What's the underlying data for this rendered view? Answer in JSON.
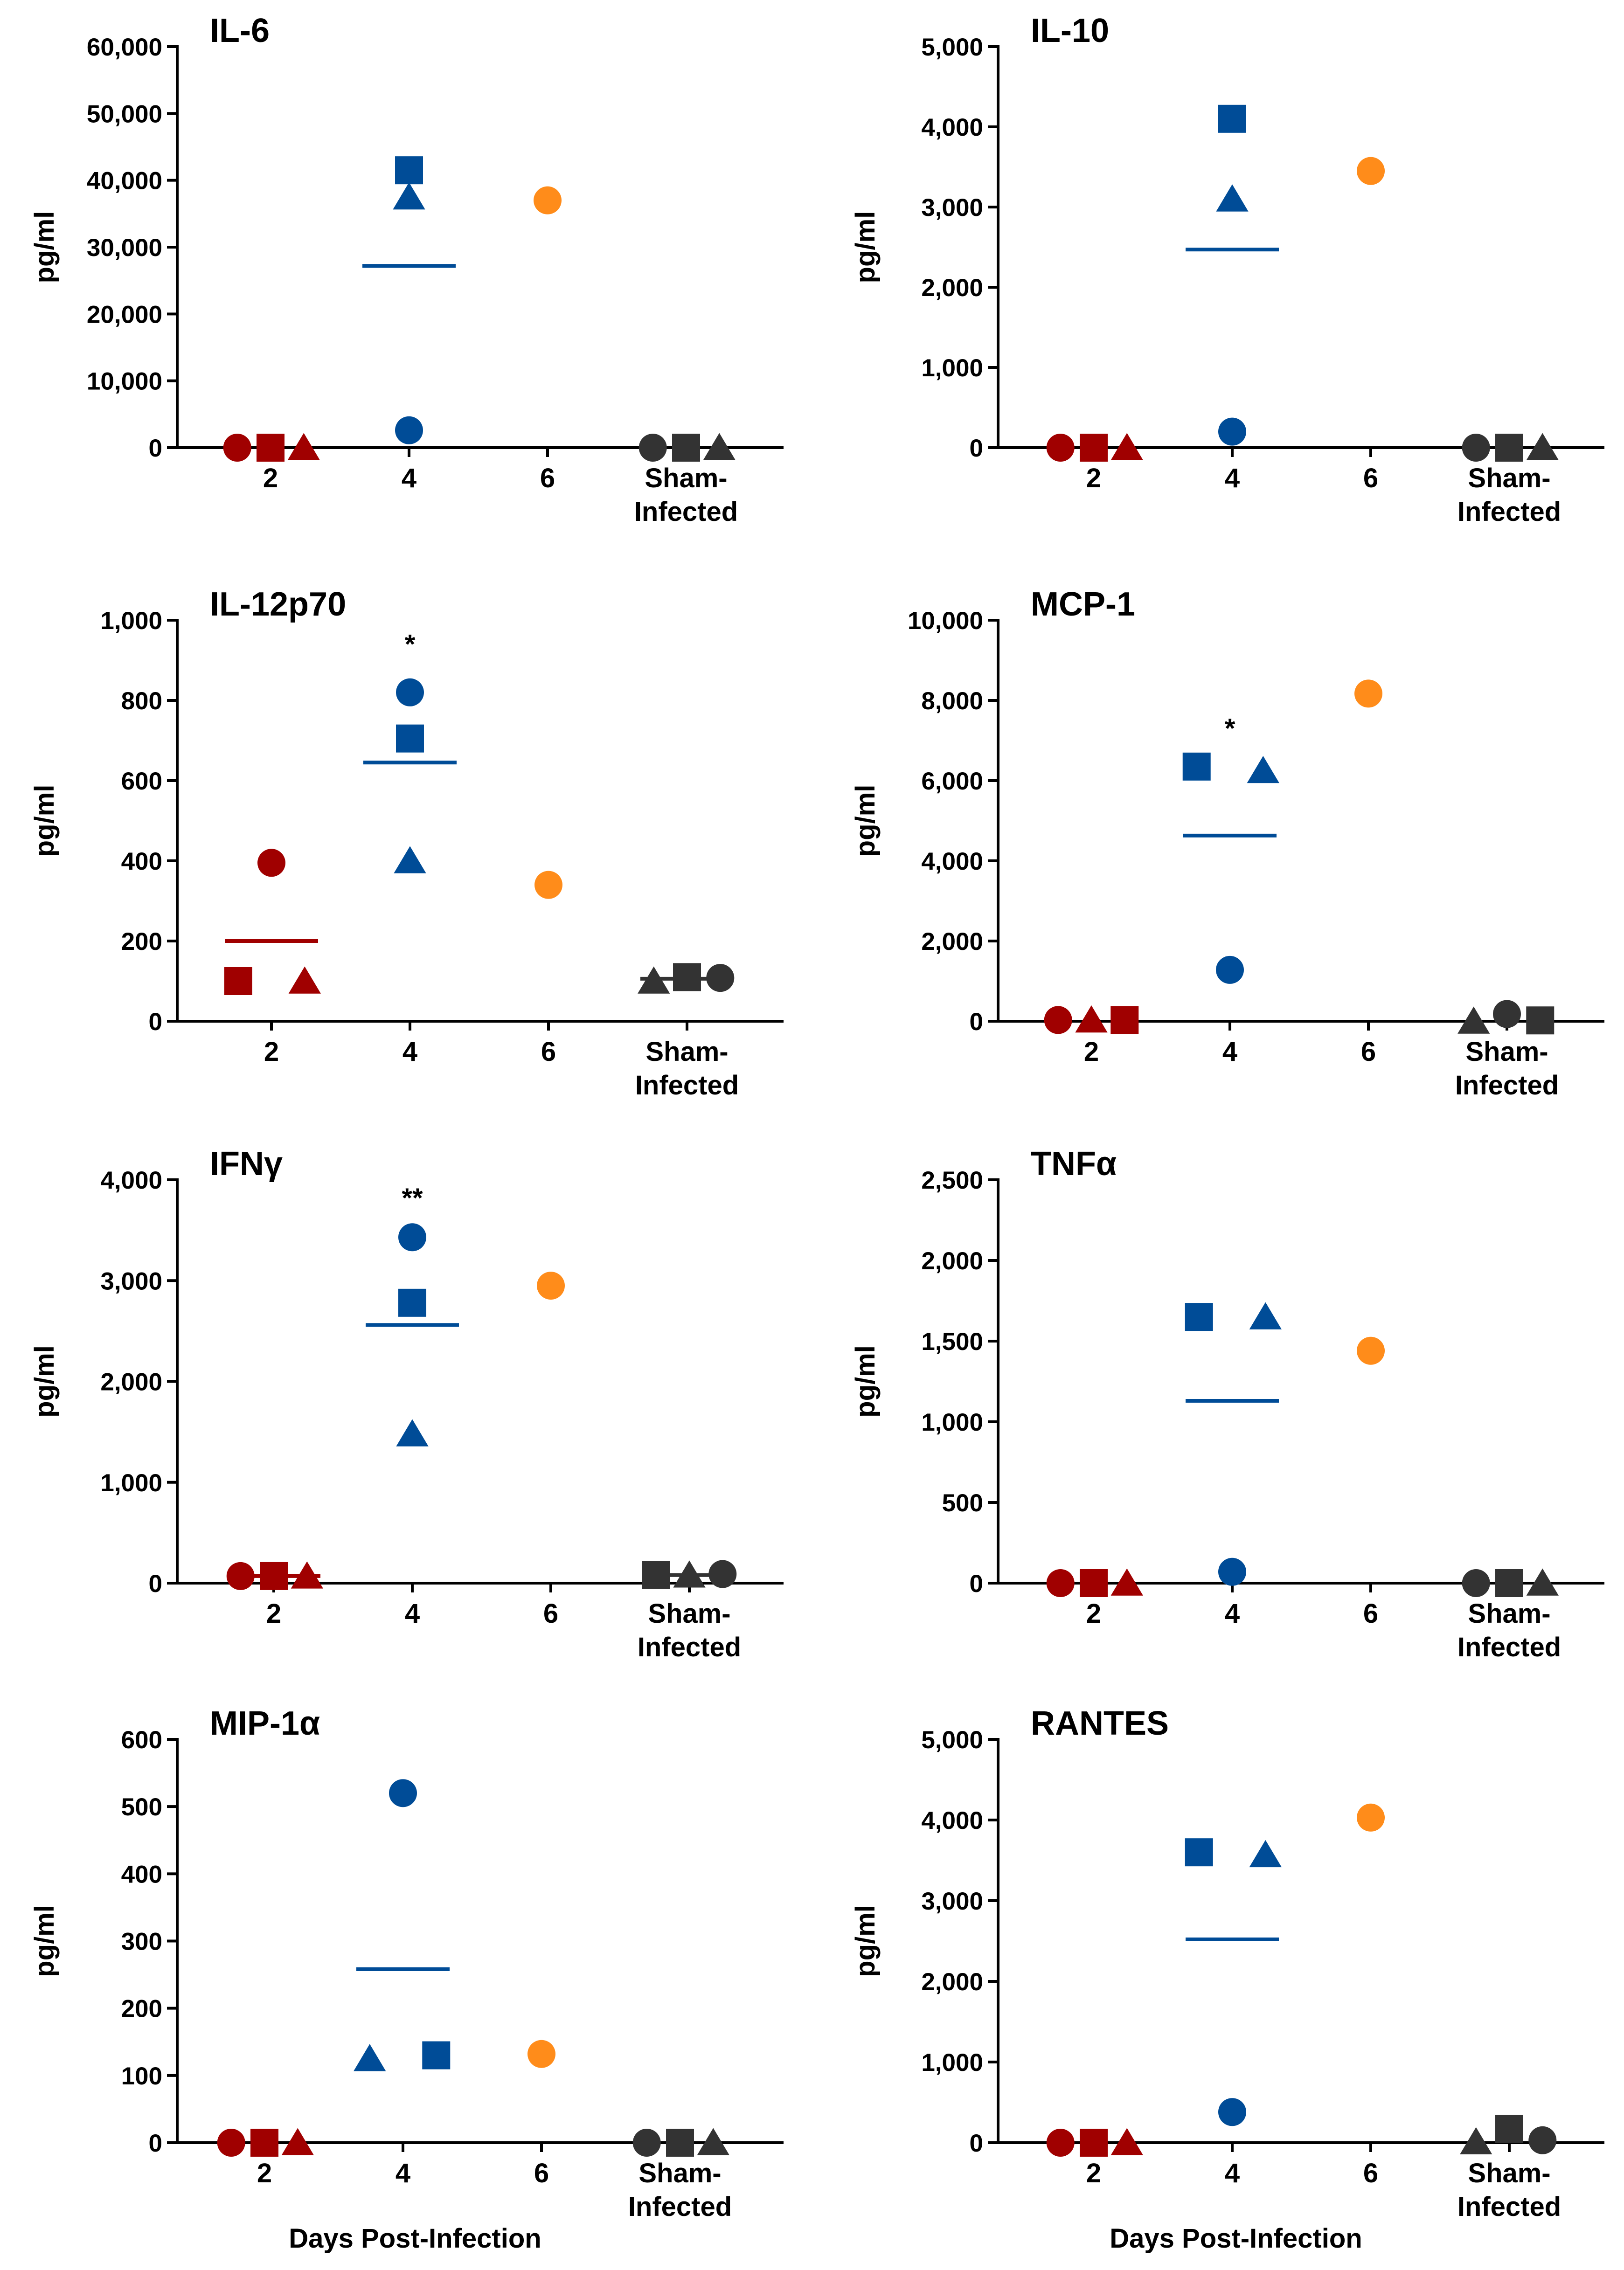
{
  "chart_data": [
    {
      "type": "scatter",
      "title": "IL-6",
      "ylabel": "pg/ml",
      "xlabel": "",
      "ylim": [
        0,
        60000
      ],
      "yticks": [
        0,
        10000,
        20000,
        30000,
        40000,
        50000,
        60000
      ],
      "ytick_labels": [
        "0",
        "10,000",
        "20,000",
        "30,000",
        "40,000",
        "50,000",
        "60,000"
      ],
      "categories": [
        "2",
        "4",
        "6",
        "Sham-\nInfected"
      ],
      "points": [
        {
          "cat": 0,
          "offset": -0.24,
          "shape": "circle",
          "color": "#a00000",
          "value": 0
        },
        {
          "cat": 0,
          "offset": 0,
          "shape": "square",
          "color": "#a00000",
          "value": 0
        },
        {
          "cat": 0,
          "offset": 0.24,
          "shape": "triangle",
          "color": "#a00000",
          "value": 0
        },
        {
          "cat": 1,
          "offset": 0,
          "shape": "square",
          "color": "#004c97",
          "value": 41500
        },
        {
          "cat": 1,
          "offset": 0,
          "shape": "triangle",
          "color": "#004c97",
          "value": 37500
        },
        {
          "cat": 1,
          "offset": 0,
          "shape": "circle",
          "color": "#004c97",
          "value": 2600
        },
        {
          "cat": 2,
          "offset": 0,
          "shape": "circle",
          "color": "#ff8c1a",
          "value": 37000
        },
        {
          "cat": 3,
          "offset": -0.24,
          "shape": "circle",
          "color": "#333333",
          "value": 0
        },
        {
          "cat": 3,
          "offset": 0,
          "shape": "square",
          "color": "#333333",
          "value": 0
        },
        {
          "cat": 3,
          "offset": 0.24,
          "shape": "triangle",
          "color": "#333333",
          "value": 0
        }
      ],
      "means": [
        {
          "cat": 1,
          "value": 27200,
          "color": "#004c97"
        }
      ],
      "annotations": []
    },
    {
      "type": "scatter",
      "title": "IL-10",
      "ylabel": "pg/ml",
      "xlabel": "",
      "ylim": [
        0,
        5000
      ],
      "yticks": [
        0,
        1000,
        2000,
        3000,
        4000,
        5000
      ],
      "ytick_labels": [
        "0",
        "1,000",
        "2,000",
        "3,000",
        "4,000",
        "5,000"
      ],
      "categories": [
        "2",
        "4",
        "6",
        "Sham-\nInfected"
      ],
      "points": [
        {
          "cat": 0,
          "offset": -0.24,
          "shape": "circle",
          "color": "#a00000",
          "value": 0
        },
        {
          "cat": 0,
          "offset": 0,
          "shape": "square",
          "color": "#a00000",
          "value": 0
        },
        {
          "cat": 0,
          "offset": 0.24,
          "shape": "triangle",
          "color": "#a00000",
          "value": 0
        },
        {
          "cat": 1,
          "offset": 0,
          "shape": "square",
          "color": "#004c97",
          "value": 4100
        },
        {
          "cat": 1,
          "offset": 0,
          "shape": "triangle",
          "color": "#004c97",
          "value": 3100
        },
        {
          "cat": 1,
          "offset": 0,
          "shape": "circle",
          "color": "#004c97",
          "value": 200
        },
        {
          "cat": 2,
          "offset": 0,
          "shape": "circle",
          "color": "#ff8c1a",
          "value": 3450
        },
        {
          "cat": 3,
          "offset": -0.24,
          "shape": "circle",
          "color": "#333333",
          "value": 0
        },
        {
          "cat": 3,
          "offset": 0,
          "shape": "square",
          "color": "#333333",
          "value": 0
        },
        {
          "cat": 3,
          "offset": 0.24,
          "shape": "triangle",
          "color": "#333333",
          "value": 0
        }
      ],
      "means": [
        {
          "cat": 1,
          "value": 2470,
          "color": "#004c97"
        }
      ],
      "annotations": []
    },
    {
      "type": "scatter",
      "title": "IL-12p70",
      "ylabel": "pg/ml",
      "xlabel": "",
      "ylim": [
        0,
        1000
      ],
      "yticks": [
        0,
        200,
        400,
        600,
        800,
        1000
      ],
      "ytick_labels": [
        "0",
        "200",
        "400",
        "600",
        "800",
        "1,000"
      ],
      "categories": [
        "2",
        "4",
        "6",
        "Sham-\nInfected"
      ],
      "points": [
        {
          "cat": 0,
          "offset": 0,
          "shape": "circle",
          "color": "#a00000",
          "value": 395
        },
        {
          "cat": 0,
          "offset": -0.24,
          "shape": "square",
          "color": "#a00000",
          "value": 100
        },
        {
          "cat": 0,
          "offset": 0.24,
          "shape": "triangle",
          "color": "#a00000",
          "value": 100
        },
        {
          "cat": 1,
          "offset": 0,
          "shape": "circle",
          "color": "#004c97",
          "value": 820
        },
        {
          "cat": 1,
          "offset": 0,
          "shape": "square",
          "color": "#004c97",
          "value": 705
        },
        {
          "cat": 1,
          "offset": 0,
          "shape": "triangle",
          "color": "#004c97",
          "value": 400
        },
        {
          "cat": 2,
          "offset": 0,
          "shape": "circle",
          "color": "#ff8c1a",
          "value": 340
        },
        {
          "cat": 3,
          "offset": -0.24,
          "shape": "triangle",
          "color": "#333333",
          "value": 100
        },
        {
          "cat": 3,
          "offset": 0,
          "shape": "square",
          "color": "#333333",
          "value": 110
        },
        {
          "cat": 3,
          "offset": 0.24,
          "shape": "circle",
          "color": "#333333",
          "value": 108
        }
      ],
      "means": [
        {
          "cat": 0,
          "value": 200,
          "color": "#a00000"
        },
        {
          "cat": 1,
          "value": 645,
          "color": "#004c97"
        },
        {
          "cat": 3,
          "value": 106,
          "color": "#333333"
        }
      ],
      "annotations": [
        {
          "cat": 1,
          "value": 940,
          "text": "*"
        }
      ]
    },
    {
      "type": "scatter",
      "title": "MCP-1",
      "ylabel": "pg/ml",
      "xlabel": "",
      "ylim": [
        0,
        10000
      ],
      "yticks": [
        0,
        2000,
        4000,
        6000,
        8000,
        10000
      ],
      "ytick_labels": [
        "0",
        "2,000",
        "4,000",
        "6,000",
        "8,000",
        "10,000"
      ],
      "categories": [
        "2",
        "4",
        "6",
        "Sham-\nInfected"
      ],
      "points": [
        {
          "cat": 0,
          "offset": -0.24,
          "shape": "circle",
          "color": "#a00000",
          "value": 30
        },
        {
          "cat": 0,
          "offset": 0,
          "shape": "triangle",
          "color": "#a00000",
          "value": 30
        },
        {
          "cat": 0,
          "offset": 0.24,
          "shape": "square",
          "color": "#a00000",
          "value": 30
        },
        {
          "cat": 1,
          "offset": -0.24,
          "shape": "square",
          "color": "#004c97",
          "value": 6350
        },
        {
          "cat": 1,
          "offset": 0.24,
          "shape": "triangle",
          "color": "#004c97",
          "value": 6250
        },
        {
          "cat": 1,
          "offset": 0,
          "shape": "circle",
          "color": "#004c97",
          "value": 1280
        },
        {
          "cat": 2,
          "offset": 0,
          "shape": "circle",
          "color": "#ff8c1a",
          "value": 8170
        },
        {
          "cat": 3,
          "offset": -0.24,
          "shape": "triangle",
          "color": "#333333",
          "value": 0
        },
        {
          "cat": 3,
          "offset": 0,
          "shape": "circle",
          "color": "#333333",
          "value": 180
        },
        {
          "cat": 3,
          "offset": 0.24,
          "shape": "square",
          "color": "#333333",
          "value": 20
        }
      ],
      "means": [
        {
          "cat": 1,
          "value": 4630,
          "color": "#004c97"
        }
      ],
      "annotations": [
        {
          "cat": 1,
          "value": 7300,
          "text": "*"
        }
      ]
    },
    {
      "type": "scatter",
      "title": "IFNγ",
      "ylabel": "pg/ml",
      "xlabel": "",
      "ylim": [
        0,
        4000
      ],
      "yticks": [
        0,
        1000,
        2000,
        3000,
        4000
      ],
      "ytick_labels": [
        "0",
        "1,000",
        "2,000",
        "3,000",
        "4,000"
      ],
      "categories": [
        "2",
        "4",
        "6",
        "Sham-\nInfected"
      ],
      "points": [
        {
          "cat": 0,
          "offset": -0.24,
          "shape": "circle",
          "color": "#a00000",
          "value": 70
        },
        {
          "cat": 0,
          "offset": 0,
          "shape": "square",
          "color": "#a00000",
          "value": 70
        },
        {
          "cat": 0,
          "offset": 0.24,
          "shape": "triangle",
          "color": "#a00000",
          "value": 70
        },
        {
          "cat": 1,
          "offset": 0,
          "shape": "circle",
          "color": "#004c97",
          "value": 3430
        },
        {
          "cat": 1,
          "offset": 0,
          "shape": "square",
          "color": "#004c97",
          "value": 2780
        },
        {
          "cat": 1,
          "offset": 0,
          "shape": "triangle",
          "color": "#004c97",
          "value": 1480
        },
        {
          "cat": 2,
          "offset": 0,
          "shape": "circle",
          "color": "#ff8c1a",
          "value": 2950
        },
        {
          "cat": 3,
          "offset": -0.24,
          "shape": "square",
          "color": "#333333",
          "value": 80
        },
        {
          "cat": 3,
          "offset": 0,
          "shape": "triangle",
          "color": "#333333",
          "value": 80
        },
        {
          "cat": 3,
          "offset": 0.24,
          "shape": "circle",
          "color": "#333333",
          "value": 90
        }
      ],
      "means": [
        {
          "cat": 0,
          "value": 70,
          "color": "#a00000"
        },
        {
          "cat": 1,
          "value": 2560,
          "color": "#004c97"
        },
        {
          "cat": 3,
          "value": 80,
          "color": "#333333"
        }
      ],
      "annotations": [
        {
          "cat": 1,
          "value": 3820,
          "text": "**"
        }
      ]
    },
    {
      "type": "scatter",
      "title": "TNFα",
      "ylabel": "pg/ml",
      "xlabel": "",
      "ylim": [
        0,
        2500
      ],
      "yticks": [
        0,
        500,
        1000,
        1500,
        2000,
        2500
      ],
      "ytick_labels": [
        "0",
        "500",
        "1,000",
        "1,500",
        "2,000",
        "2,500"
      ],
      "categories": [
        "2",
        "4",
        "6",
        "Sham-\nInfected"
      ],
      "points": [
        {
          "cat": 0,
          "offset": -0.24,
          "shape": "circle",
          "color": "#a00000",
          "value": 0
        },
        {
          "cat": 0,
          "offset": 0,
          "shape": "square",
          "color": "#a00000",
          "value": 0
        },
        {
          "cat": 0,
          "offset": 0.24,
          "shape": "triangle",
          "color": "#a00000",
          "value": 0
        },
        {
          "cat": 1,
          "offset": -0.24,
          "shape": "square",
          "color": "#004c97",
          "value": 1650
        },
        {
          "cat": 1,
          "offset": 0.24,
          "shape": "triangle",
          "color": "#004c97",
          "value": 1650
        },
        {
          "cat": 1,
          "offset": 0,
          "shape": "circle",
          "color": "#004c97",
          "value": 70
        },
        {
          "cat": 2,
          "offset": 0,
          "shape": "circle",
          "color": "#ff8c1a",
          "value": 1440
        },
        {
          "cat": 3,
          "offset": -0.24,
          "shape": "circle",
          "color": "#333333",
          "value": 0
        },
        {
          "cat": 3,
          "offset": 0,
          "shape": "square",
          "color": "#333333",
          "value": 0
        },
        {
          "cat": 3,
          "offset": 0.24,
          "shape": "triangle",
          "color": "#333333",
          "value": 0
        }
      ],
      "means": [
        {
          "cat": 1,
          "value": 1130,
          "color": "#004c97"
        }
      ],
      "annotations": []
    },
    {
      "type": "scatter",
      "title": "MIP-1α",
      "ylabel": "pg/ml",
      "xlabel": "Days Post-Infection",
      "ylim": [
        0,
        600
      ],
      "yticks": [
        0,
        100,
        200,
        300,
        400,
        500,
        600
      ],
      "ytick_labels": [
        "0",
        "100",
        "200",
        "300",
        "400",
        "500",
        "600"
      ],
      "categories": [
        "2",
        "4",
        "6",
        "Sham-\nInfected"
      ],
      "points": [
        {
          "cat": 0,
          "offset": -0.24,
          "shape": "circle",
          "color": "#a00000",
          "value": 0
        },
        {
          "cat": 0,
          "offset": 0,
          "shape": "square",
          "color": "#a00000",
          "value": 0
        },
        {
          "cat": 0,
          "offset": 0.24,
          "shape": "triangle",
          "color": "#a00000",
          "value": 0
        },
        {
          "cat": 1,
          "offset": 0,
          "shape": "circle",
          "color": "#004c97",
          "value": 520
        },
        {
          "cat": 1,
          "offset": -0.24,
          "shape": "triangle",
          "color": "#004c97",
          "value": 125
        },
        {
          "cat": 1,
          "offset": 0.24,
          "shape": "square",
          "color": "#004c97",
          "value": 130
        },
        {
          "cat": 2,
          "offset": 0,
          "shape": "circle",
          "color": "#ff8c1a",
          "value": 132
        },
        {
          "cat": 3,
          "offset": -0.24,
          "shape": "circle",
          "color": "#333333",
          "value": 0
        },
        {
          "cat": 3,
          "offset": 0,
          "shape": "square",
          "color": "#333333",
          "value": 0
        },
        {
          "cat": 3,
          "offset": 0.24,
          "shape": "triangle",
          "color": "#333333",
          "value": 0
        }
      ],
      "means": [
        {
          "cat": 1,
          "value": 258,
          "color": "#004c97"
        }
      ],
      "annotations": []
    },
    {
      "type": "scatter",
      "title": "RANTES",
      "ylabel": "pg/ml",
      "xlabel": "Days Post-Infection",
      "ylim": [
        0,
        5000
      ],
      "yticks": [
        0,
        1000,
        2000,
        3000,
        4000,
        5000
      ],
      "ytick_labels": [
        "0",
        "1,000",
        "2,000",
        "3,000",
        "4,000",
        "5,000"
      ],
      "categories": [
        "2",
        "4",
        "6",
        "Sham-\nInfected"
      ],
      "points": [
        {
          "cat": 0,
          "offset": -0.24,
          "shape": "circle",
          "color": "#a00000",
          "value": 0
        },
        {
          "cat": 0,
          "offset": 0,
          "shape": "square",
          "color": "#a00000",
          "value": 0
        },
        {
          "cat": 0,
          "offset": 0.24,
          "shape": "triangle",
          "color": "#a00000",
          "value": 0
        },
        {
          "cat": 1,
          "offset": -0.24,
          "shape": "square",
          "color": "#004c97",
          "value": 3600
        },
        {
          "cat": 1,
          "offset": 0.24,
          "shape": "triangle",
          "color": "#004c97",
          "value": 3570
        },
        {
          "cat": 1,
          "offset": 0,
          "shape": "circle",
          "color": "#004c97",
          "value": 380
        },
        {
          "cat": 2,
          "offset": 0,
          "shape": "circle",
          "color": "#ff8c1a",
          "value": 4030
        },
        {
          "cat": 3,
          "offset": -0.24,
          "shape": "triangle",
          "color": "#333333",
          "value": 10
        },
        {
          "cat": 3,
          "offset": 0,
          "shape": "square",
          "color": "#333333",
          "value": 170
        },
        {
          "cat": 3,
          "offset": 0.24,
          "shape": "circle",
          "color": "#333333",
          "value": 30
        }
      ],
      "means": [
        {
          "cat": 1,
          "value": 2520,
          "color": "#004c97"
        }
      ],
      "annotations": []
    }
  ]
}
